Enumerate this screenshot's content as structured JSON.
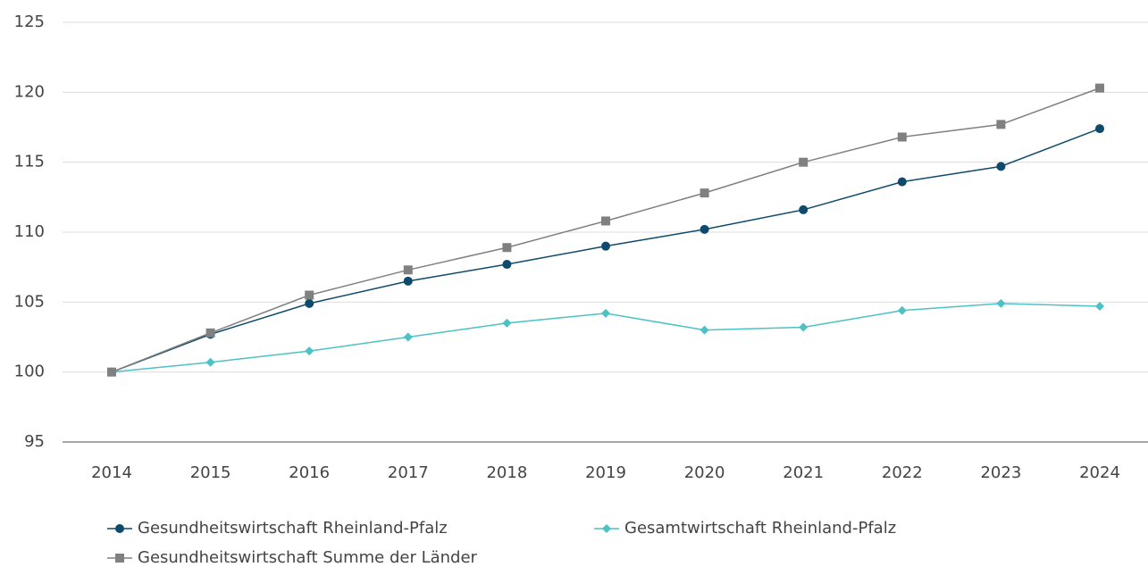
{
  "chart_data": {
    "type": "line",
    "x": [
      "2014",
      "2015",
      "2016",
      "2017",
      "2018",
      "2019",
      "2020",
      "2021",
      "2022",
      "2023",
      "2024"
    ],
    "series": [
      {
        "name": "Gesundheitswirtschaft Rheinland-Pfalz",
        "color": "#0d4a6b",
        "marker": "circle",
        "values": [
          100,
          102.7,
          104.9,
          106.5,
          107.7,
          109.0,
          110.2,
          111.6,
          113.6,
          114.7,
          117.4
        ]
      },
      {
        "name": "Gesamtwirtschaft Rheinland-Pfalz",
        "color": "#4cc2c4",
        "marker": "diamond",
        "values": [
          100,
          100.7,
          101.5,
          102.5,
          103.5,
          104.2,
          103.0,
          103.2,
          104.4,
          104.9,
          104.7
        ]
      },
      {
        "name": "Gesundheitswirtschaft Summe der Länder",
        "color": "#808080",
        "marker": "square",
        "values": [
          100,
          102.8,
          105.5,
          107.3,
          108.9,
          110.8,
          112.8,
          115.0,
          116.8,
          117.7,
          120.3
        ]
      }
    ],
    "ylim": [
      95,
      125
    ],
    "yticks": [
      95,
      100,
      105,
      110,
      115,
      120,
      125
    ],
    "grid": true,
    "legend": "bottom"
  }
}
